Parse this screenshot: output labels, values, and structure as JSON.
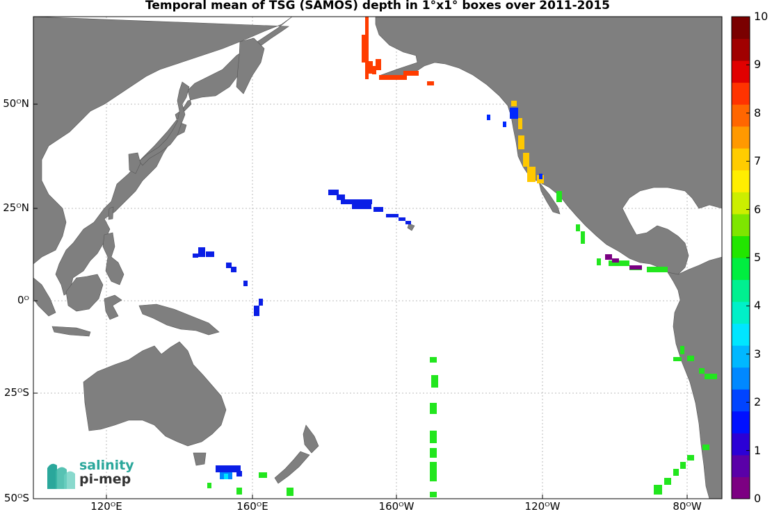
{
  "title": "Temporal mean of TSG (SAMOS) depth in 1°x1° boxes over 2011-2015",
  "map": {
    "lon_range": [
      100,
      290
    ],
    "lat_range": [
      -50,
      65
    ],
    "y_ticks": [
      "50ᴼN",
      "25ᴼN",
      "0ᴼ",
      "25ᴼS",
      "50ᴼS"
    ],
    "x_ticks": [
      "120ᴼE",
      "160ᴼE",
      "160ᴼW",
      "120ᴼW",
      "80ᴼW"
    ],
    "land_color": "#7f7f7f",
    "ocean_color": "#ffffff",
    "grid": true
  },
  "colorbar": {
    "ticks": [
      "0",
      "1",
      "2",
      "3",
      "4",
      "5",
      "6",
      "7",
      "8",
      "9",
      "10"
    ],
    "range": [
      0,
      10
    ],
    "colormap": [
      "#7c0082",
      "#5a00a8",
      "#2b00d6",
      "#0010ff",
      "#0044ff",
      "#0088ff",
      "#00b8ff",
      "#00e6ff",
      "#00f0c8",
      "#00f090",
      "#00ee40",
      "#22e600",
      "#7ee600",
      "#ccee00",
      "#ffee00",
      "#ffcc00",
      "#ff9900",
      "#ff6600",
      "#ff3300",
      "#e00000",
      "#a00000",
      "#7a0000"
    ]
  },
  "logo": {
    "line1": "salinity",
    "line2": "pi-mep"
  }
}
